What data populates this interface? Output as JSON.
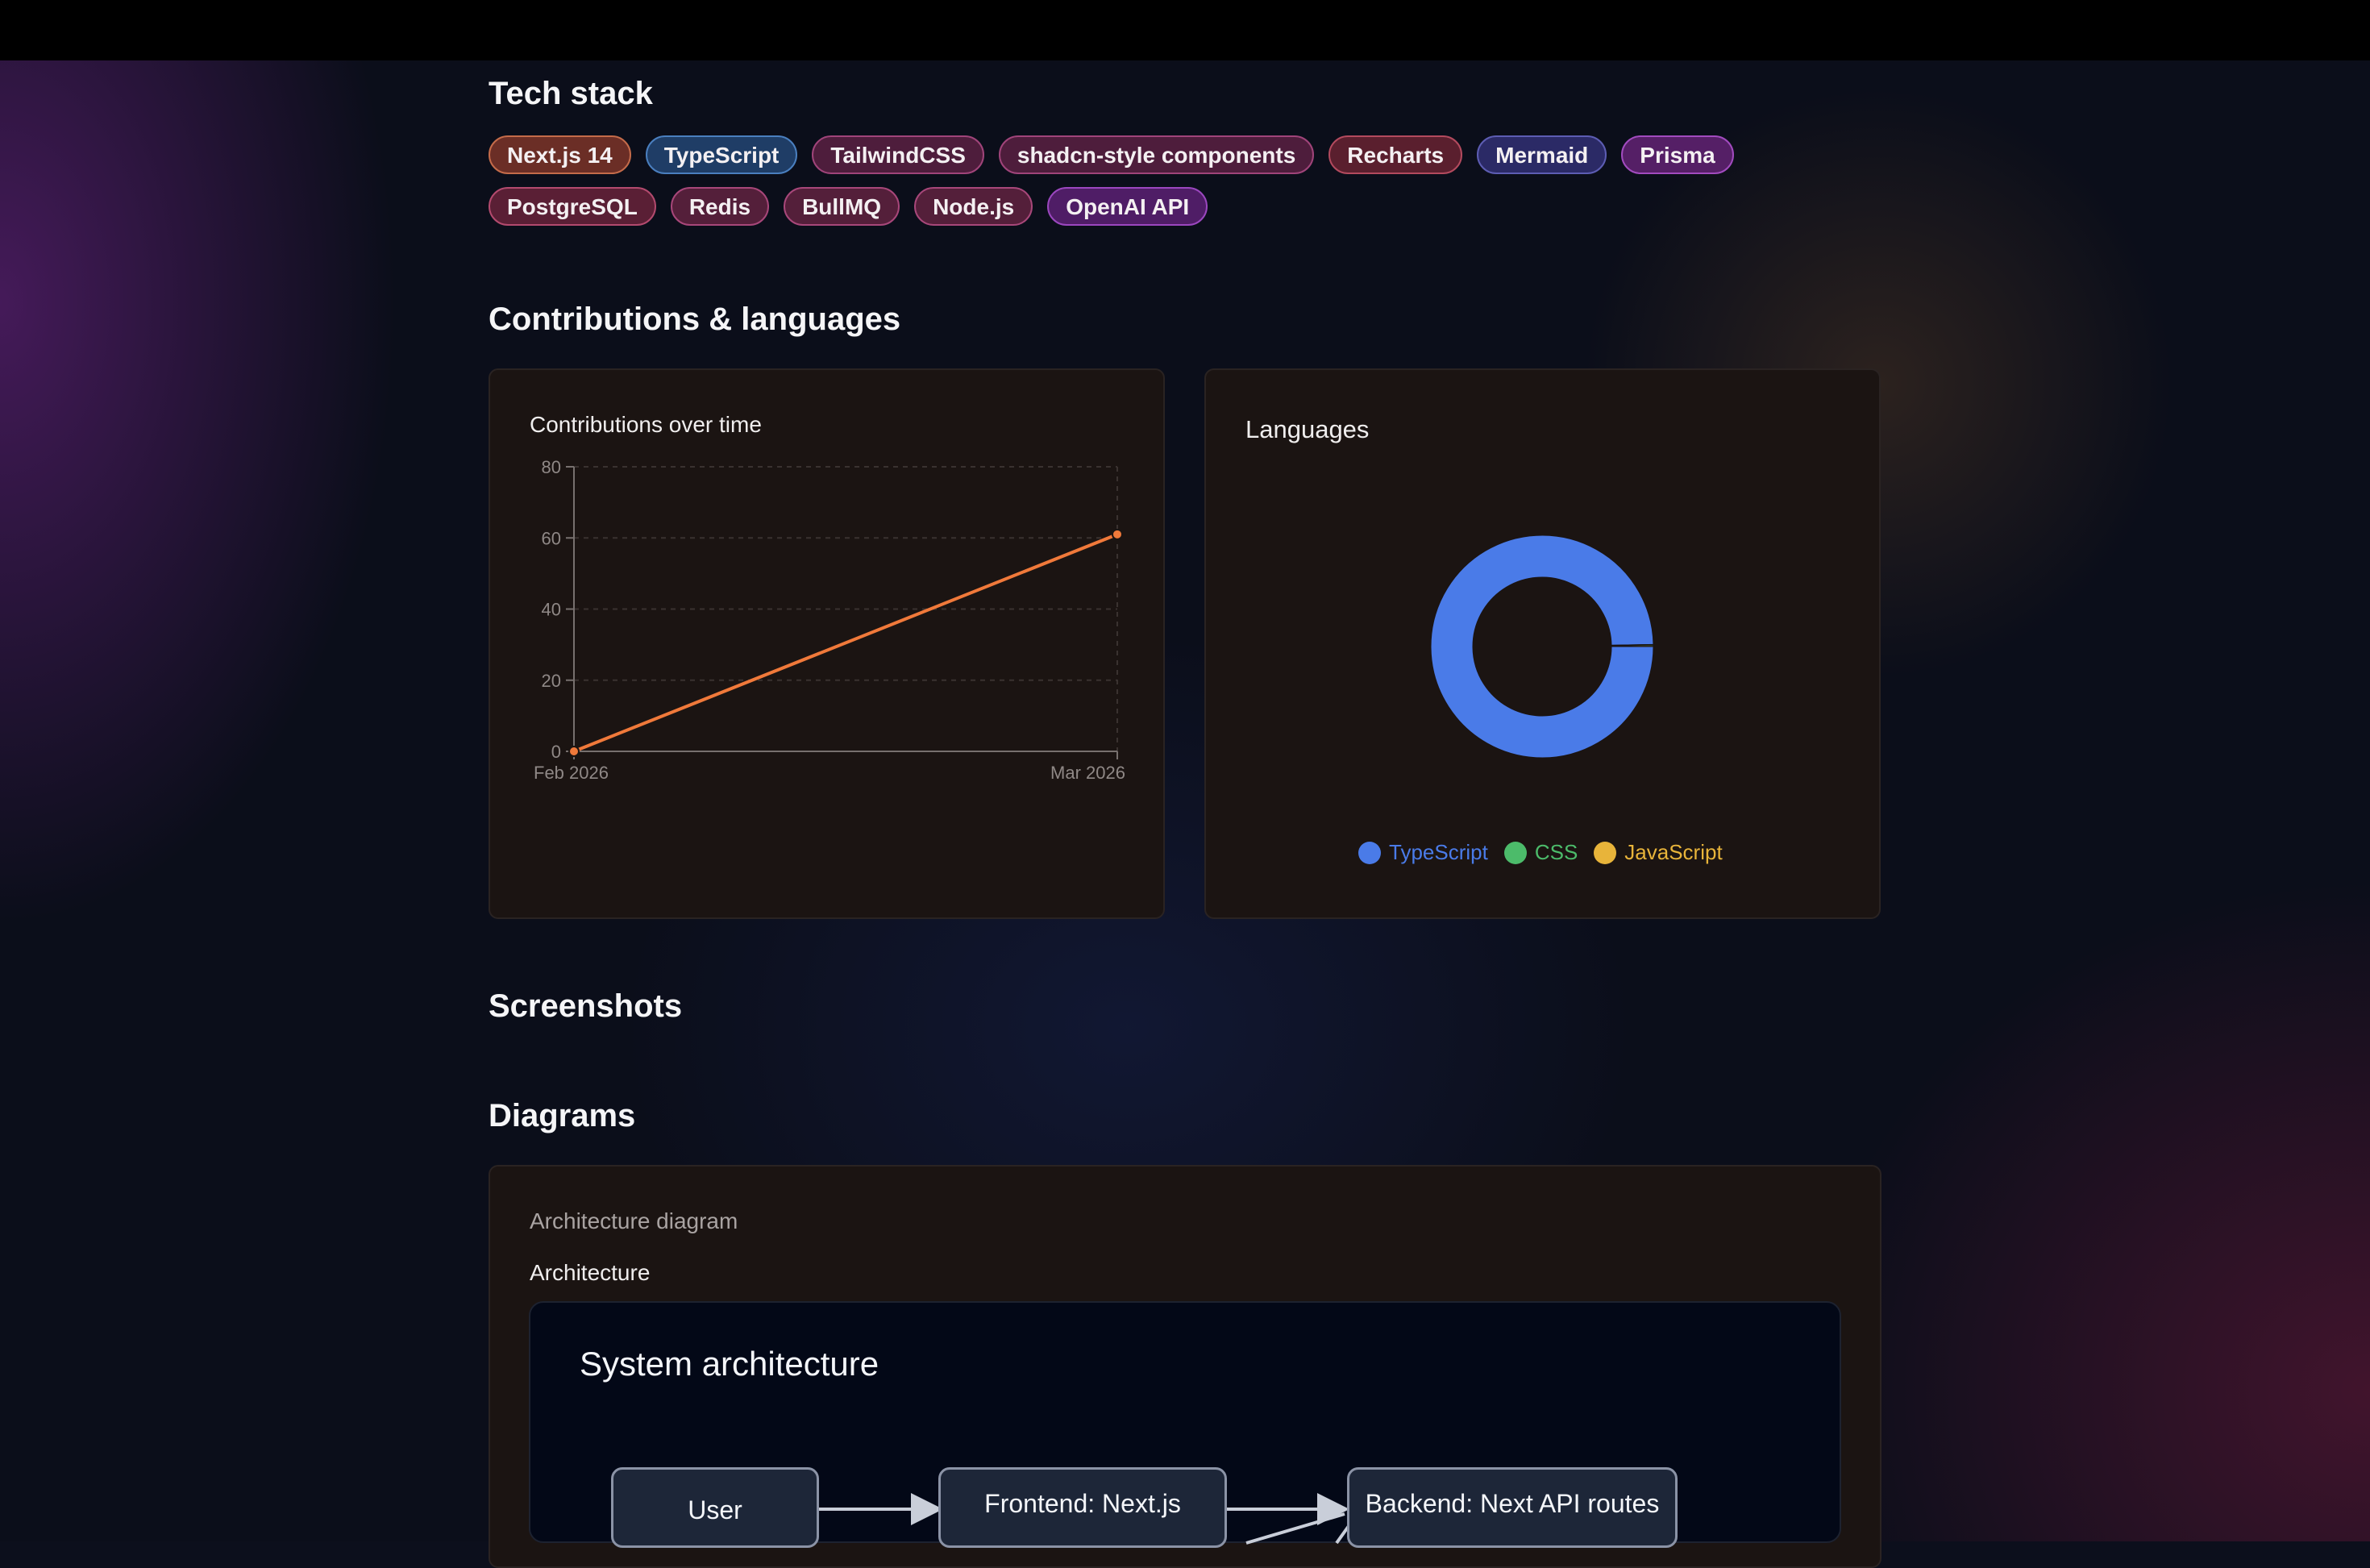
{
  "tech_stack": {
    "title": "Tech stack",
    "pills": [
      {
        "label": "Next.js 14",
        "bg": "#6b2e26",
        "border": "#c46b4a"
      },
      {
        "label": "TypeScript",
        "bg": "#1f3d66",
        "border": "#4a7fbf"
      },
      {
        "label": "TailwindCSS",
        "bg": "#4e1d3c",
        "border": "#a0447a"
      },
      {
        "label": "shadcn-style components",
        "bg": "#4e1d3c",
        "border": "#a0447a"
      },
      {
        "label": "Recharts",
        "bg": "#5a1f2e",
        "border": "#b34a5e"
      },
      {
        "label": "Mermaid",
        "bg": "#2b2a66",
        "border": "#5d5db3"
      },
      {
        "label": "Prisma",
        "bg": "#551f66",
        "border": "#a24bbf"
      },
      {
        "label": "PostgreSQL",
        "bg": "#5a1f35",
        "border": "#b34a6e"
      },
      {
        "label": "Redis",
        "bg": "#541f3a",
        "border": "#a8477a"
      },
      {
        "label": "BullMQ",
        "bg": "#541f3a",
        "border": "#a8477a"
      },
      {
        "label": "Node.js",
        "bg": "#541f3a",
        "border": "#a8477a"
      },
      {
        "label": "OpenAI API",
        "bg": "#4f1d66",
        "border": "#9b47bf"
      }
    ]
  },
  "contributions": {
    "title": "Contributions & languages",
    "line_card_title": "Contributions over time",
    "pie_card_title": "Languages"
  },
  "chart_data": [
    {
      "type": "line",
      "title": "Contributions over time",
      "x": [
        "Feb 2026",
        "Mar 2026"
      ],
      "series": [
        {
          "values": [
            0,
            61
          ],
          "color": "#f0793a"
        }
      ],
      "ylim": [
        0,
        80
      ],
      "yticks": [
        0,
        20,
        40,
        60,
        80
      ],
      "grid": true
    },
    {
      "type": "pie",
      "title": "Languages",
      "donut": true,
      "categories": [
        "TypeScript",
        "CSS",
        "JavaScript"
      ],
      "values": [
        99.7,
        0.15,
        0.15
      ],
      "colors": [
        "#4a7be8",
        "#4cbb6a",
        "#e8b43a"
      ],
      "legend": "bottom"
    }
  ],
  "screenshots": {
    "title": "Screenshots"
  },
  "diagrams": {
    "title": "Diagrams",
    "card_subtitle": "Architecture diagram",
    "card_title": "Architecture",
    "diagram_title": "System architecture",
    "nodes": [
      "User",
      "Frontend: Next.js",
      "Backend: Next API routes"
    ]
  }
}
